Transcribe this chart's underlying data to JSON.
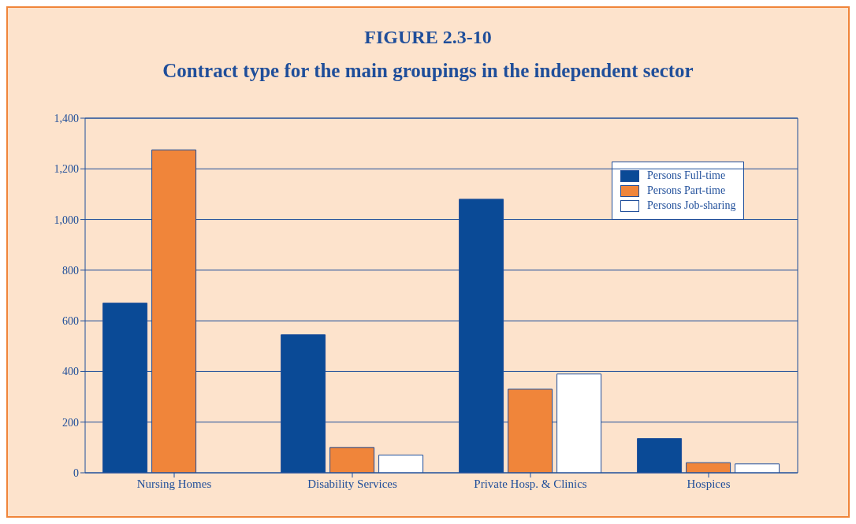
{
  "chart_data": {
    "type": "bar",
    "title": "FIGURE 2.3-10",
    "subtitle": "Contract type for the main groupings in the independent sector",
    "categories": [
      "Nursing Homes",
      "Disability Services",
      "Private Hosp. & Clinics",
      "Hospices"
    ],
    "series": [
      {
        "name": "Persons Full-time",
        "color": "#0a4a96",
        "values": [
          670,
          545,
          1080,
          135
        ]
      },
      {
        "name": "Persons Part-time",
        "color": "#f0853a",
        "values": [
          1275,
          100,
          330,
          40
        ]
      },
      {
        "name": "Persons Job-sharing",
        "color": "#ffffff",
        "values": [
          null,
          70,
          390,
          35
        ]
      }
    ],
    "ylim": [
      0,
      1400
    ],
    "yticks": [
      0,
      200,
      400,
      600,
      800,
      {
        "value": 1000,
        "label": "1,000"
      },
      {
        "value": 1200,
        "label": "1,200"
      },
      {
        "value": 1400,
        "label": "1,400"
      }
    ],
    "grid": "y",
    "legend": "top right"
  }
}
